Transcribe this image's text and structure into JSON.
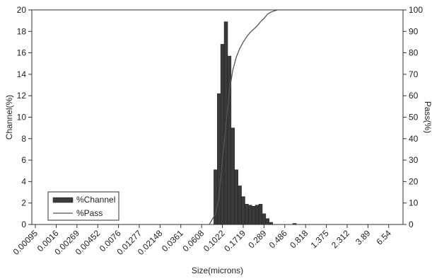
{
  "chart_data": {
    "type": "bar",
    "categories": [
      "0.00095",
      "0.0016",
      "0.00269",
      "0.00452",
      "0.0076",
      "0.01277",
      "0.02148",
      "0.0361",
      "0.0608",
      "0.1022",
      "0.1719",
      "0.289",
      "0.486",
      "0.818",
      "1.375",
      "2.312",
      "3.89",
      "6.54"
    ],
    "xlabel": "Size(microns)",
    "ylabel_left": "Channel(%)",
    "ylabel_right": "Pass(%)",
    "ylim_left": [
      0,
      20
    ],
    "ylim_right": [
      0,
      100
    ],
    "yticks_left": [
      0,
      2,
      4,
      6,
      8,
      10,
      12,
      14,
      16,
      18,
      20
    ],
    "yticks_right": [
      0,
      10,
      20,
      30,
      40,
      50,
      60,
      70,
      80,
      90,
      100
    ],
    "grid": false,
    "legend_position": "bottom-left",
    "series": [
      {
        "name": "%Channel",
        "type": "bar",
        "color": "#3a3a3a",
        "axis": "left",
        "points": [
          {
            "x": 0.0861,
            "y": 5.1
          },
          {
            "x": 0.0939,
            "y": 12.2
          },
          {
            "x": 0.1022,
            "y": 16.8
          },
          {
            "x": 0.1115,
            "y": 18.9
          },
          {
            "x": 0.1215,
            "y": 15.7
          },
          {
            "x": 0.1325,
            "y": 9.0
          },
          {
            "x": 0.1445,
            "y": 5.1
          },
          {
            "x": 0.1576,
            "y": 3.6
          },
          {
            "x": 0.1719,
            "y": 2.6
          },
          {
            "x": 0.1875,
            "y": 1.9
          },
          {
            "x": 0.2045,
            "y": 1.8
          },
          {
            "x": 0.223,
            "y": 1.7
          },
          {
            "x": 0.2432,
            "y": 1.8
          },
          {
            "x": 0.2652,
            "y": 1.9
          },
          {
            "x": 0.289,
            "y": 1.0
          },
          {
            "x": 0.315,
            "y": 0.55
          },
          {
            "x": 0.344,
            "y": 0.2
          },
          {
            "x": 0.62,
            "y": 0.1
          }
        ]
      },
      {
        "name": "%Pass",
        "type": "line",
        "color": "#555555",
        "axis": "right",
        "points": [
          {
            "x": 0.0735,
            "y": 0
          },
          {
            "x": 0.0861,
            "y": 5
          },
          {
            "x": 0.0939,
            "y": 13
          },
          {
            "x": 0.1022,
            "y": 30
          },
          {
            "x": 0.1115,
            "y": 46
          },
          {
            "x": 0.1215,
            "y": 62
          },
          {
            "x": 0.1325,
            "y": 72
          },
          {
            "x": 0.1445,
            "y": 78
          },
          {
            "x": 0.1576,
            "y": 82
          },
          {
            "x": 0.1719,
            "y": 85
          },
          {
            "x": 0.1875,
            "y": 87.5
          },
          {
            "x": 0.2045,
            "y": 89.5
          },
          {
            "x": 0.223,
            "y": 91
          },
          {
            "x": 0.2432,
            "y": 92.5
          },
          {
            "x": 0.2652,
            "y": 94.5
          },
          {
            "x": 0.289,
            "y": 96
          },
          {
            "x": 0.315,
            "y": 98
          },
          {
            "x": 0.344,
            "y": 99
          },
          {
            "x": 0.375,
            "y": 99.6
          },
          {
            "x": 0.409,
            "y": 100
          },
          {
            "x": 1.375,
            "y": 100
          }
        ]
      }
    ],
    "legend": [
      {
        "label": "%Channel",
        "marker": "bar"
      },
      {
        "label": "%Pass",
        "marker": "line"
      }
    ]
  }
}
